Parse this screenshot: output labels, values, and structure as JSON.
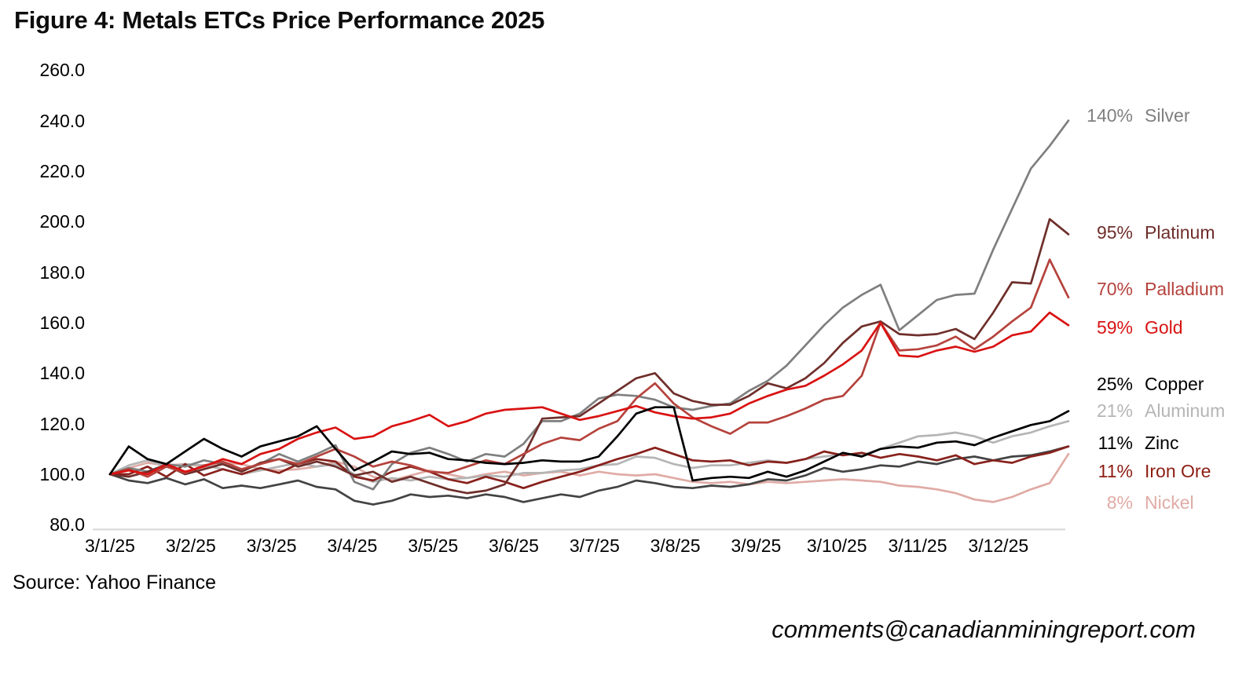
{
  "title": "Figure 4: Metals ETCs Price Performance 2025",
  "source": "Source: Yahoo Finance",
  "footer_email": "comments@canadianminingreport.com",
  "chart_data": {
    "type": "line",
    "title": "Figure 4: Metals ETCs Price Performance 2025",
    "xlabel": "",
    "ylabel": "",
    "ylim": [
      80,
      260
    ],
    "grid": false,
    "legend_position": "right-of-line-ends",
    "x_unit": "weekly observations, Jan-Dec 2025 (baseline 100 = start of year)",
    "x_tick_labels": [
      "3/1/25",
      "3/2/25",
      "3/3/25",
      "3/4/25",
      "3/5/25",
      "3/6/25",
      "3/7/25",
      "3/8/25",
      "3/9/25",
      "3/10/25",
      "3/11/25",
      "3/12/25"
    ],
    "y_tick_labels": [
      "260.0",
      "240.0",
      "220.0",
      "200.0",
      "180.0",
      "160.0",
      "140.0",
      "120.0",
      "100.0",
      "80.0"
    ],
    "y_tick_values": [
      260,
      240,
      220,
      200,
      180,
      160,
      140,
      120,
      100,
      80
    ],
    "axis_line_color": "#d6d6d6",
    "series": [
      {
        "name": "Nickel",
        "pct_label": "8%",
        "final_pct": 8,
        "color": "#e0aba5",
        "values": [
          100,
          102.5,
          104.5,
          103.5,
          104,
          103,
          104.5,
          104,
          102,
          101.5,
          102,
          103,
          105,
          103,
          99,
          97.5,
          99.5,
          101.5,
          100,
          98.5,
          100,
          101,
          99.5,
          100.5,
          101,
          99.5,
          101,
          100,
          99.5,
          100,
          98.5,
          97,
          96.5,
          97,
          96,
          97,
          96.5,
          97,
          97.5,
          98,
          97.5,
          97,
          95.5,
          95,
          94,
          92.5,
          90,
          89,
          91,
          94,
          96.5,
          108
        ]
      },
      {
        "name": "Aluminum",
        "pct_label": "21%",
        "final_pct": 21,
        "color": "#b5b5b5",
        "values": [
          100,
          103.5,
          105.5,
          103,
          104,
          103.5,
          102,
          100,
          101.5,
          103,
          104.5,
          103,
          104,
          100,
          97,
          98.5,
          97.5,
          99,
          98,
          98.5,
          99.5,
          99,
          100.5,
          100.5,
          101.5,
          102,
          103.5,
          104,
          107,
          106.5,
          104,
          102.5,
          103.5,
          103.5,
          104.5,
          105.5,
          104.5,
          106,
          107,
          108,
          107.5,
          110,
          112.5,
          115,
          115.5,
          116.5,
          115,
          112.5,
          115,
          116.5,
          119,
          121
        ]
      },
      {
        "name": "Zinc",
        "pct_label": "11%",
        "final_pct": 11,
        "color": "#434343",
        "label_color": "#000000",
        "values": [
          100,
          97.5,
          96.5,
          98.5,
          96,
          98,
          94.5,
          95.5,
          94.5,
          96,
          97.5,
          95,
          94,
          89.5,
          88,
          89.5,
          92,
          91,
          91.5,
          90.5,
          92,
          91,
          89,
          90.5,
          92,
          91,
          93.5,
          95,
          97.5,
          96.5,
          95,
          94.5,
          95.5,
          95,
          96,
          98,
          97.5,
          99.5,
          102.5,
          101,
          102,
          103.5,
          103,
          105,
          104,
          106,
          107,
          105.5,
          107,
          107.5,
          109,
          111
        ]
      },
      {
        "name": "Iron Ore",
        "pct_label": "11%",
        "final_pct": 11,
        "color": "#88211c",
        "label_color": "#8c1d12",
        "values": [
          100,
          100,
          103,
          99,
          104,
          99.5,
          102,
          100,
          102.5,
          100.5,
          104,
          106,
          105,
          99,
          97.5,
          101,
          103,
          101,
          98,
          96.5,
          99,
          97,
          94.5,
          97,
          99,
          101,
          103.5,
          106,
          108,
          110.5,
          108,
          105.5,
          105,
          105.5,
          103.5,
          105,
          104.5,
          106,
          109,
          107.5,
          108.5,
          106.5,
          108,
          107,
          105.5,
          107.5,
          104,
          105.5,
          104.5,
          107,
          108.5,
          111
        ]
      },
      {
        "name": "Silver",
        "pct_label": "140%",
        "final_pct": 140,
        "color": "#7f7f7f",
        "values": [
          100,
          102.5,
          101,
          104,
          103,
          105.5,
          104,
          101.5,
          104,
          108,
          105,
          108,
          111.5,
          97,
          94,
          104,
          108.5,
          110.5,
          108,
          105,
          108,
          107,
          112,
          121,
          121,
          124,
          130,
          131.5,
          131,
          129.5,
          126.5,
          125.5,
          127,
          128,
          133,
          137,
          143,
          151,
          159,
          166,
          171,
          175,
          157,
          163,
          169,
          171,
          171.5,
          189,
          205,
          221,
          230,
          240
        ]
      },
      {
        "name": "Platinum",
        "pct_label": "95%",
        "final_pct": 95,
        "color": "#6e2f2b",
        "values": [
          100,
          99,
          101,
          103.5,
          100,
          102,
          104,
          101,
          104.5,
          106,
          103,
          105,
          103,
          99.5,
          101,
          97,
          99,
          96.5,
          94,
          92.5,
          93.5,
          96,
          107,
          122,
          122.5,
          123,
          128,
          133,
          138,
          140,
          132,
          129,
          127.5,
          127.5,
          131,
          136,
          134,
          138,
          144,
          152,
          158.5,
          160.5,
          155.5,
          155,
          155.5,
          157.5,
          153.5,
          164,
          176,
          175.5,
          201,
          195
        ]
      },
      {
        "name": "Palladium",
        "pct_label": "70%",
        "final_pct": 70,
        "color": "#b5423c",
        "values": [
          100,
          102,
          99,
          103,
          100.5,
          103.5,
          105,
          102,
          104,
          106,
          104,
          107,
          110,
          107,
          103,
          105,
          103.5,
          101,
          100.5,
          103,
          105.5,
          104,
          108,
          112,
          114.5,
          113.5,
          118,
          121,
          130,
          136,
          128,
          122.5,
          119,
          116,
          120.5,
          120.5,
          123,
          126,
          129.5,
          131,
          139,
          160,
          149,
          149.5,
          151,
          154.5,
          149.5,
          154.5,
          160.5,
          166,
          185,
          170
        ]
      },
      {
        "name": "Gold",
        "pct_label": "59%",
        "final_pct": 59,
        "color": "#d91212",
        "values": [
          100,
          101.5,
          100,
          104,
          101,
          103,
          106,
          104,
          108,
          110,
          114,
          116.5,
          118.5,
          114,
          115,
          119,
          121,
          123.5,
          119,
          121,
          124,
          125.5,
          126,
          126.5,
          124,
          121.5,
          123,
          125,
          127,
          124.5,
          123,
          122,
          122.5,
          124,
          128,
          131,
          133.5,
          135,
          139,
          143.5,
          149,
          160,
          147,
          146.5,
          149,
          150.5,
          148.5,
          150.5,
          155,
          156.5,
          164,
          159
        ]
      },
      {
        "name": "Copper",
        "pct_label": "25%",
        "final_pct": 25,
        "color": "#000000",
        "values": [
          100,
          111,
          106,
          104,
          109,
          114,
          110,
          107,
          111,
          113,
          115,
          119,
          110,
          101.5,
          105,
          109,
          108,
          108.5,
          106,
          105.5,
          104.5,
          104,
          104.5,
          105.5,
          105,
          105,
          107,
          115,
          124,
          126.5,
          126.5,
          97.5,
          98.5,
          99,
          98.5,
          101,
          99,
          101.5,
          105,
          108.5,
          107,
          110,
          111,
          110.5,
          112.5,
          113,
          111.5,
          114.5,
          117,
          119.5,
          121,
          125
        ]
      }
    ]
  }
}
